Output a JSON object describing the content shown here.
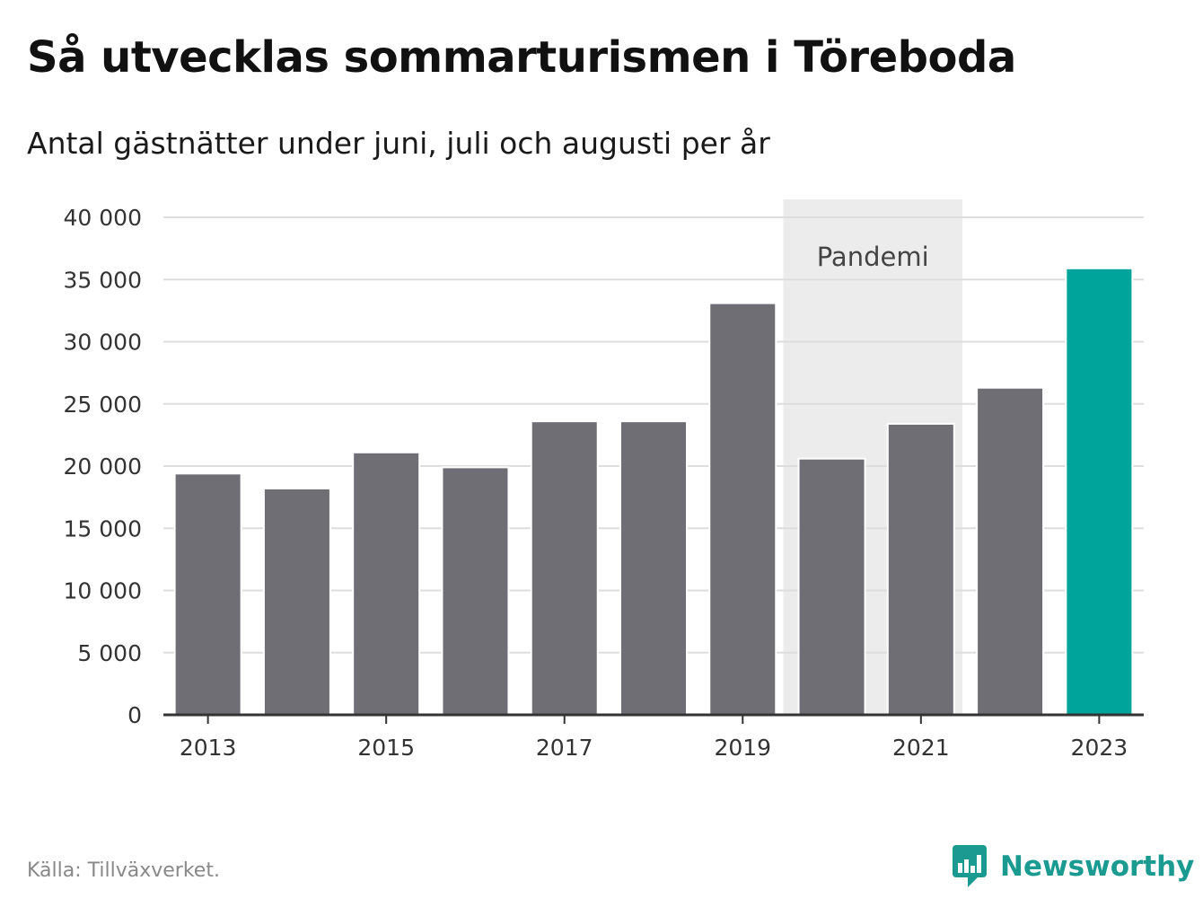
{
  "header": {
    "title": "Så utvecklas sommarturismen i Töreboda",
    "subtitle": "Antal gästnätter under juni, juli och augusti per år"
  },
  "footer": {
    "source": "Källa: Tillväxverket.",
    "brand": "Newsworthy"
  },
  "colors": {
    "bar_default": "#6f6e75",
    "bar_highlight": "#00a49a",
    "pandemic_band": "#ececec",
    "gridline": "#dddddd",
    "axis": "#333333",
    "brand": "#1a9a90"
  },
  "chart_data": {
    "type": "bar",
    "categories": [
      "2013",
      "2014",
      "2015",
      "2016",
      "2017",
      "2018",
      "2019",
      "2020",
      "2021",
      "2022",
      "2023"
    ],
    "values": [
      19400,
      18200,
      21100,
      19900,
      23600,
      23600,
      33100,
      20600,
      23400,
      26300,
      35900
    ],
    "highlight": [
      "2023"
    ],
    "ylim": [
      0,
      40000
    ],
    "yticks": [
      0,
      5000,
      10000,
      15000,
      20000,
      25000,
      30000,
      35000,
      40000
    ],
    "ytick_labels": [
      "0",
      "5 000",
      "10 000",
      "15 000",
      "20 000",
      "25 000",
      "30 000",
      "35 000",
      "40 000"
    ],
    "xtick_labels": [
      "2013",
      "2015",
      "2017",
      "2019",
      "2021",
      "2023"
    ],
    "grid": true,
    "annotations": [
      {
        "type": "band",
        "label": "Pandemi",
        "from": "2020",
        "to": "2021"
      }
    ]
  }
}
